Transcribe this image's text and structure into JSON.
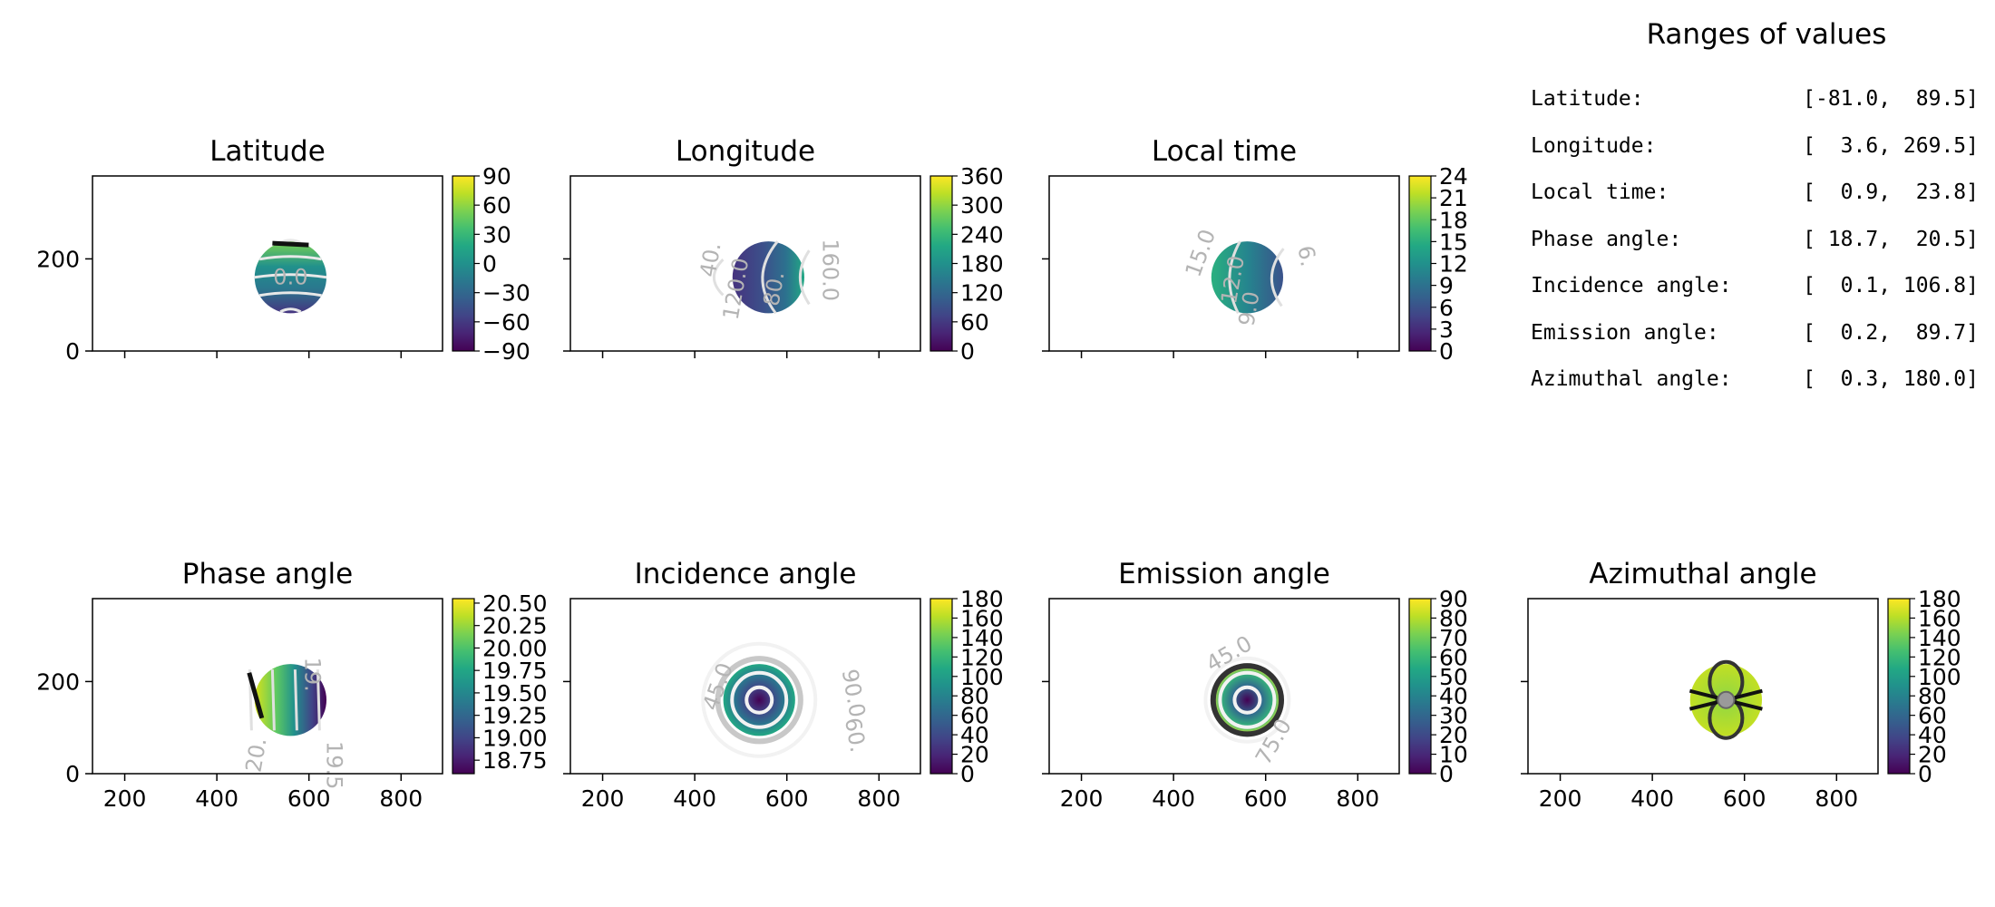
{
  "chart_data": [
    {
      "type": "heatmap",
      "title": "Latitude",
      "xlim": [
        130,
        890
      ],
      "ylim": [
        0,
        380
      ],
      "xticks": [
        200,
        400,
        600,
        800
      ],
      "yticks": [
        0,
        200
      ],
      "show_xticklabels": false,
      "show_yticklabels": true,
      "disk": {
        "cx": 560,
        "cy": 160,
        "r": 78
      },
      "colorbar": {
        "min": -90,
        "max": 90,
        "ticks": [
          "90",
          "60",
          "30",
          "0",
          "−30",
          "−60",
          "−90"
        ]
      },
      "contour_labels": [
        "0.0"
      ]
    },
    {
      "type": "heatmap",
      "title": "Longitude",
      "xlim": [
        130,
        890
      ],
      "ylim": [
        0,
        380
      ],
      "xticks": [
        200,
        400,
        600,
        800
      ],
      "yticks": [
        0,
        200
      ],
      "show_xticklabels": false,
      "show_yticklabels": false,
      "disk": {
        "cx": 560,
        "cy": 160,
        "r": 78
      },
      "colorbar": {
        "min": 0,
        "max": 360,
        "ticks": [
          "360",
          "300",
          "240",
          "180",
          "120",
          "60",
          "0"
        ]
      },
      "contour_labels": [
        "120.0",
        "80.",
        "160.0",
        "40."
      ]
    },
    {
      "type": "heatmap",
      "title": "Local time",
      "xlim": [
        130,
        890
      ],
      "ylim": [
        0,
        380
      ],
      "xticks": [
        200,
        400,
        600,
        800
      ],
      "yticks": [
        0,
        200
      ],
      "show_xticklabels": false,
      "show_yticklabels": false,
      "disk": {
        "cx": 560,
        "cy": 160,
        "r": 78
      },
      "colorbar": {
        "min": 0,
        "max": 24,
        "ticks": [
          "24",
          "21",
          "18",
          "15",
          "12",
          "9",
          "6",
          "3",
          "0"
        ]
      },
      "contour_labels": [
        "12.0",
        "9.0",
        "15.0",
        "6."
      ]
    },
    {
      "type": "heatmap",
      "title": "Phase angle",
      "xlim": [
        130,
        890
      ],
      "ylim": [
        0,
        380
      ],
      "xticks": [
        200,
        400,
        600,
        800
      ],
      "yticks": [
        0,
        200
      ],
      "show_xticklabels": true,
      "show_yticklabels": true,
      "disk": {
        "cx": 560,
        "cy": 160,
        "r": 78
      },
      "colorbar": {
        "min": 18.6,
        "max": 20.55,
        "ticks": [
          "20.50",
          "20.25",
          "20.00",
          "19.75",
          "19.50",
          "19.25",
          "19.00",
          "18.75"
        ]
      },
      "contour_labels": [
        "20.",
        "19.",
        "19.5"
      ]
    },
    {
      "type": "heatmap",
      "title": "Incidence angle",
      "xlim": [
        130,
        890
      ],
      "ylim": [
        0,
        380
      ],
      "xticks": [
        200,
        400,
        600,
        800
      ],
      "yticks": [
        0,
        200
      ],
      "show_xticklabels": true,
      "show_yticklabels": false,
      "disk": {
        "cx": 540,
        "cy": 160,
        "r": 78
      },
      "colorbar": {
        "min": 0,
        "max": 180,
        "ticks": [
          "180",
          "160",
          "140",
          "120",
          "100",
          "80",
          "60",
          "40",
          "20",
          "0"
        ]
      },
      "contour_labels": [
        "45.0",
        "90.0",
        "60."
      ]
    },
    {
      "type": "heatmap",
      "title": "Emission angle",
      "xlim": [
        130,
        890
      ],
      "ylim": [
        0,
        380
      ],
      "xticks": [
        200,
        400,
        600,
        800
      ],
      "yticks": [
        0,
        200
      ],
      "show_xticklabels": true,
      "show_yticklabels": false,
      "disk": {
        "cx": 560,
        "cy": 160,
        "r": 78
      },
      "colorbar": {
        "min": 0,
        "max": 90,
        "ticks": [
          "90",
          "80",
          "70",
          "60",
          "50",
          "40",
          "30",
          "20",
          "10",
          "0"
        ]
      },
      "contour_labels": [
        "45.0",
        "75.0"
      ]
    },
    {
      "type": "heatmap",
      "title": "Azimuthal angle",
      "xlim": [
        130,
        890
      ],
      "ylim": [
        0,
        380
      ],
      "xticks": [
        200,
        400,
        600,
        800
      ],
      "yticks": [
        0,
        200
      ],
      "show_xticklabels": true,
      "show_yticklabels": false,
      "disk": {
        "cx": 560,
        "cy": 160,
        "r": 78
      },
      "colorbar": {
        "min": 0,
        "max": 180,
        "ticks": [
          "180",
          "160",
          "140",
          "120",
          "100",
          "80",
          "60",
          "40",
          "20",
          "0"
        ]
      },
      "contour_labels": []
    }
  ],
  "ranges": {
    "title": "Ranges of values",
    "rows": [
      {
        "label": "Latitude:",
        "value": "[-81.0,  89.5]"
      },
      {
        "label": "Longitude:",
        "value": "[  3.6, 269.5]"
      },
      {
        "label": "Local time:",
        "value": "[  0.9,  23.8]"
      },
      {
        "label": "Phase angle:",
        "value": "[ 18.7,  20.5]"
      },
      {
        "label": "Incidence angle:",
        "value": "[  0.1, 106.8]"
      },
      {
        "label": "Emission angle:",
        "value": "[  0.2,  89.7]"
      },
      {
        "label": "Azimuthal angle:",
        "value": "[  0.3, 180.0]"
      }
    ]
  }
}
